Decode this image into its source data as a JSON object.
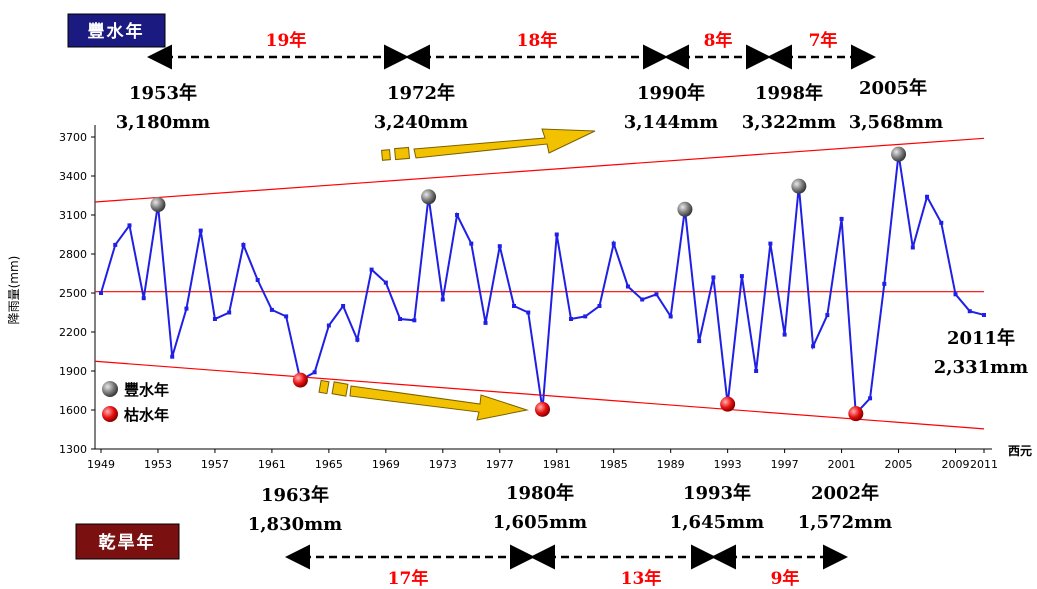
{
  "chart_data": {
    "type": "line",
    "ylabel": "降雨量(mm)",
    "xlabel": "西元",
    "ylim": [
      1300,
      3700
    ],
    "xlim": [
      1949,
      2011
    ],
    "yticks": [
      "1300",
      "1600",
      "1900",
      "2200",
      "2500",
      "2800",
      "3100",
      "3400",
      "3700"
    ],
    "xticks": [
      "1949",
      "1953",
      "1957",
      "1961",
      "1965",
      "1969",
      "1973",
      "1977",
      "1981",
      "1985",
      "1989",
      "1993",
      "1997",
      "2001",
      "2005",
      "2009",
      "2011"
    ],
    "series": [
      {
        "x": [
          1949,
          1950,
          1951,
          1952,
          1953,
          1954,
          1955,
          1956,
          1957,
          1958,
          1959,
          1960,
          1961,
          1962,
          1963,
          1964,
          1965,
          1966,
          1967,
          1968,
          1969,
          1970,
          1971,
          1972,
          1973,
          1974,
          1975,
          1976,
          1977,
          1978,
          1979,
          1980,
          1981,
          1982,
          1983,
          1984,
          1985,
          1986,
          1987,
          1988,
          1989,
          1990,
          1991,
          1992,
          1993,
          1994,
          1995,
          1996,
          1997,
          1998,
          1999,
          2000,
          2001,
          2002,
          2003,
          2004,
          2005,
          2006,
          2007,
          2008,
          2009,
          2010,
          2011
        ],
        "values": [
          2500,
          2870,
          3020,
          2460,
          3180,
          2010,
          2380,
          2980,
          2300,
          2350,
          2870,
          2600,
          2370,
          2320,
          1830,
          1890,
          2250,
          2400,
          2140,
          2680,
          2580,
          2300,
          2290,
          3240,
          2450,
          3100,
          2880,
          2270,
          2860,
          2400,
          2350,
          1605,
          2950,
          2300,
          2320,
          2400,
          2880,
          2550,
          2450,
          2490,
          2320,
          3144,
          2130,
          2620,
          1645,
          2630,
          1900,
          2880,
          2180,
          3322,
          2090,
          2330,
          3070,
          1572,
          1690,
          2570,
          3568,
          2850,
          3240,
          3040,
          2490,
          2360,
          2331
        ]
      }
    ],
    "reference_lines": {
      "mean": 2510,
      "upper": {
        "x": [
          1949,
          2011
        ],
        "y": [
          3200,
          3690
        ]
      },
      "lower": {
        "x": [
          1949,
          2011
        ],
        "y": [
          1975,
          1455
        ]
      }
    },
    "wet_years": [
      1953,
      1972,
      1990,
      1998,
      2005
    ],
    "dry_years": [
      1963,
      1980,
      1993,
      2002
    ],
    "legend": [
      "豐水年",
      "枯水年"
    ],
    "colors": {
      "line": "#1f1fe6",
      "ref": "#ff0000",
      "wet": "#7a7a7a",
      "dry": "#e81010",
      "arrow": "#f2c200"
    }
  },
  "banners": {
    "wet": "豐水年",
    "dry": "乾旱年"
  },
  "annotations": {
    "wet": [
      {
        "year": "1953年",
        "value": "3,180mm"
      },
      {
        "year": "1972年",
        "value": "3,240mm"
      },
      {
        "year": "1990年",
        "value": "3,144mm"
      },
      {
        "year": "1998年",
        "value": "3,322mm"
      },
      {
        "year": "2005年",
        "value": "3,568mm"
      }
    ],
    "dry": [
      {
        "year": "1963年",
        "value": "1,830mm"
      },
      {
        "year": "1980年",
        "value": "1,605mm"
      },
      {
        "year": "1993年",
        "value": "1,645mm"
      },
      {
        "year": "2002年",
        "value": "1,572mm"
      }
    ],
    "latest": {
      "year": "2011年",
      "value": "2,331mm"
    }
  },
  "intervals": {
    "wet": [
      "19年",
      "18年",
      "8年",
      "7年"
    ],
    "dry": [
      "17年",
      "13年",
      "9年"
    ]
  }
}
